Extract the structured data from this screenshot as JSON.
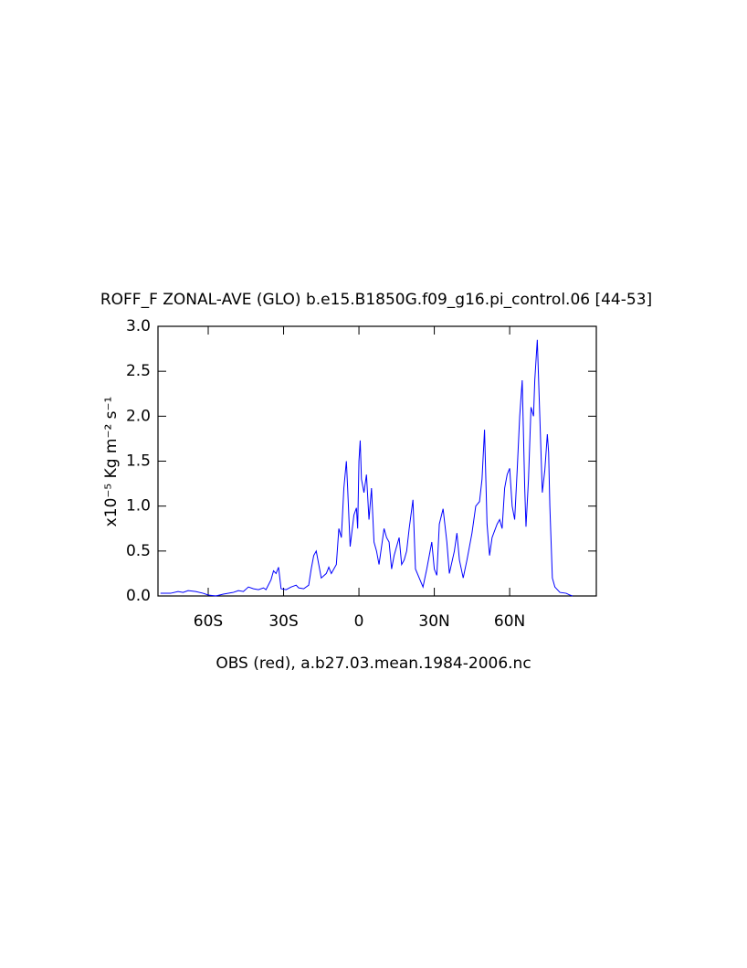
{
  "chart_data": {
    "type": "line",
    "title": "ROFF_F ZONAL-AVE (GLO) b.e15.B1850G.f09_g16.pi_control.06 [44-53]",
    "y_label": "x10⁻⁵ Kg m⁻² s⁻¹",
    "x_label": "OBS (red), a.b27.03.mean.1984-2006.nc",
    "xlim": [
      -80,
      94.5
    ],
    "ylim": [
      0,
      3
    ],
    "xticks": [
      {
        "value": -60,
        "label": "60S"
      },
      {
        "value": -30,
        "label": "30S"
      },
      0,
      {
        "value": 30,
        "label": "30N"
      },
      {
        "value": 60,
        "label": "60N"
      }
    ],
    "yticks": [
      {
        "value": 0,
        "label": "0.0"
      },
      0.5,
      {
        "value": 1,
        "label": "1.0"
      },
      1.5,
      {
        "value": 2,
        "label": "2.0"
      },
      2.5,
      {
        "value": 3,
        "label": "3.0"
      }
    ],
    "x": [
      -79,
      -75,
      -72,
      -70,
      -68,
      -65,
      -62,
      -60,
      -57,
      -54,
      -50,
      -48,
      -46,
      -44,
      -42,
      -40,
      -38,
      -37,
      -35,
      -34,
      -33,
      -32,
      -31,
      -29,
      -27,
      -25,
      -24,
      -22,
      -20,
      -19,
      -18,
      -17,
      -16,
      -15,
      -13,
      -12,
      -11,
      -10,
      -9,
      -8,
      -7,
      -6,
      -5,
      -4.5,
      -3.5,
      -2,
      -1,
      -0.5,
      0,
      0.5,
      1,
      2,
      3,
      4,
      5,
      6,
      7,
      8,
      9,
      10,
      11,
      12,
      13,
      14,
      15,
      16,
      17,
      18,
      19,
      20,
      21.5,
      22.5,
      25.5,
      27,
      29,
      30,
      31,
      32,
      33.5,
      35,
      36,
      38,
      39,
      40,
      41.5,
      43,
      45,
      46.5,
      48,
      49,
      50,
      51,
      52,
      53,
      55,
      56,
      57,
      58,
      59,
      60,
      61,
      62,
      63,
      64,
      65,
      66,
      66.5,
      67.5,
      68.5,
      69.5,
      70,
      71,
      72,
      73,
      74,
      75,
      75.5,
      76,
      77,
      78,
      80,
      82.5,
      84,
      85
    ],
    "series": [
      {
        "name": "ROFF_F",
        "color": "#0000ff",
        "values": [
          0.03,
          0.03,
          0.05,
          0.04,
          0.06,
          0.05,
          0.03,
          0.01,
          0.0,
          0.02,
          0.04,
          0.06,
          0.05,
          0.1,
          0.08,
          0.07,
          0.09,
          0.07,
          0.18,
          0.28,
          0.25,
          0.32,
          0.08,
          0.07,
          0.1,
          0.12,
          0.09,
          0.08,
          0.12,
          0.3,
          0.45,
          0.5,
          0.35,
          0.2,
          0.25,
          0.32,
          0.25,
          0.3,
          0.35,
          0.75,
          0.65,
          1.2,
          1.5,
          1.2,
          0.55,
          0.9,
          0.98,
          0.75,
          1.5,
          1.73,
          1.3,
          1.15,
          1.35,
          0.85,
          1.2,
          0.6,
          0.5,
          0.35,
          0.55,
          0.75,
          0.65,
          0.6,
          0.3,
          0.45,
          0.55,
          0.65,
          0.35,
          0.4,
          0.5,
          0.75,
          1.07,
          0.3,
          0.1,
          0.3,
          0.6,
          0.3,
          0.23,
          0.8,
          0.97,
          0.6,
          0.25,
          0.5,
          0.7,
          0.4,
          0.2,
          0.4,
          0.7,
          1.0,
          1.05,
          1.3,
          1.85,
          0.8,
          0.45,
          0.65,
          0.8,
          0.85,
          0.75,
          1.2,
          1.35,
          1.42,
          1.0,
          0.85,
          1.4,
          2.0,
          2.4,
          1.2,
          0.77,
          1.3,
          2.1,
          2.0,
          2.4,
          2.85,
          2.0,
          1.15,
          1.4,
          1.8,
          1.6,
          1.0,
          0.2,
          0.1,
          0.04,
          0.03,
          0.01,
          0
        ]
      }
    ]
  }
}
